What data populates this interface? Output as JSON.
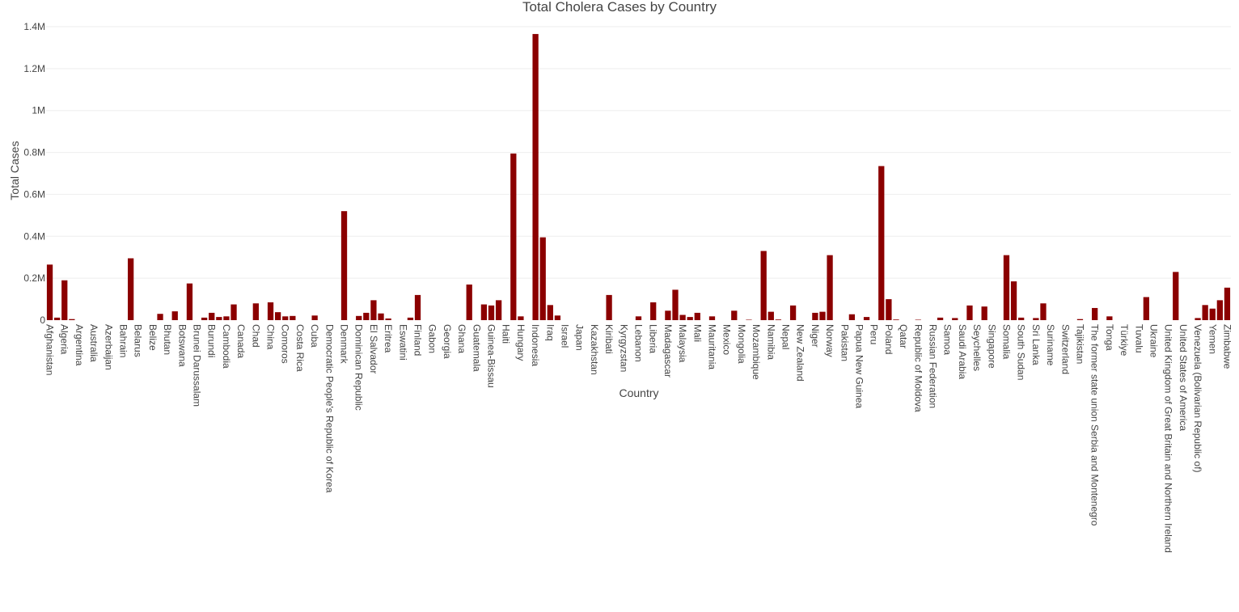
{
  "chart_data": {
    "type": "bar",
    "title": "Total Cholera Cases by Country",
    "xlabel": "Country",
    "ylabel": "Total Cases",
    "ylim": [
      0,
      1400000
    ],
    "yticks": [
      0,
      200000,
      400000,
      600000,
      800000,
      1000000,
      1200000,
      1400000
    ],
    "ytick_labels": [
      "0",
      "0.2M",
      "0.4M",
      "0.6M",
      "0.8M",
      "1M",
      "1.2M",
      "1.4M"
    ],
    "grid": true,
    "bar_color": "#8b0000",
    "categories": [
      "Afghanistan",
      "Algeria",
      "Argentina",
      "Australia",
      "Azerbaijan",
      "Bahrain",
      "Belarus",
      "Belize",
      "Bhutan",
      "Botswana",
      "Brunei Darussalam",
      "Burundi",
      "Cambodia",
      "Canada",
      "Chad",
      "China",
      "Comoros",
      "Costa Rica",
      "Cuba",
      "Democratic People's Republic of Korea",
      "Denmark",
      "Dominican Republic",
      "El Salvador",
      "Eritrea",
      "Eswatini",
      "Finland",
      "Gabon",
      "Georgia",
      "Ghana",
      "Guatemala",
      "Guinea-Bissau",
      "Haiti",
      "Hungary",
      "Indonesia",
      "Iraq",
      "Israel",
      "Japan",
      "Kazakhstan",
      "Kiribati",
      "Kyrgyzstan",
      "Lebanon",
      "Liberia",
      "Madagascar",
      "Malaysia",
      "Mali",
      "Mauritania",
      "Mexico",
      "Mongolia",
      "Mozambique",
      "Namibia",
      "Nepal",
      "New Zealand",
      "Niger",
      "Norway",
      "Pakistan",
      "Papua New Guinea",
      "Peru",
      "Poland",
      "Qatar",
      "Republic of Moldova",
      "Russian Federation",
      "Samoa",
      "Saudi Arabia",
      "Seychelles",
      "Singapore",
      "Somalia",
      "South Sudan",
      "Sri Lanka",
      "Suriname",
      "Switzerland",
      "Tajikistan",
      "The former state union Serbia and Montenegro",
      "Tonga",
      "Türkiye",
      "Tuvalu",
      "Ukraine",
      "United Kingdom of Great Britain and Northern Ireland",
      "United States of America",
      "Venezuela (Bolivarian Republic of)",
      "Yemen",
      "Zimbabwe"
    ],
    "bars": [
      {
        "pos": 0,
        "value": 265000
      },
      {
        "pos": 1,
        "value": 12000
      },
      {
        "pos": 2,
        "value": 190000
      },
      {
        "pos": 3,
        "value": 5000
      },
      {
        "pos": 11,
        "value": 295000
      },
      {
        "pos": 15,
        "value": 30000
      },
      {
        "pos": 17,
        "value": 42000
      },
      {
        "pos": 19,
        "value": 175000
      },
      {
        "pos": 21,
        "value": 12000
      },
      {
        "pos": 22,
        "value": 35000
      },
      {
        "pos": 23,
        "value": 15000
      },
      {
        "pos": 24,
        "value": 18000
      },
      {
        "pos": 25,
        "value": 75000
      },
      {
        "pos": 28,
        "value": 80000
      },
      {
        "pos": 30,
        "value": 85000
      },
      {
        "pos": 31,
        "value": 38000
      },
      {
        "pos": 32,
        "value": 18000
      },
      {
        "pos": 33,
        "value": 20000
      },
      {
        "pos": 36,
        "value": 22000
      },
      {
        "pos": 40,
        "value": 520000
      },
      {
        "pos": 42,
        "value": 20000
      },
      {
        "pos": 43,
        "value": 35000
      },
      {
        "pos": 44,
        "value": 95000
      },
      {
        "pos": 45,
        "value": 32000
      },
      {
        "pos": 46,
        "value": 8000
      },
      {
        "pos": 49,
        "value": 12000
      },
      {
        "pos": 50,
        "value": 120000
      },
      {
        "pos": 57,
        "value": 170000
      },
      {
        "pos": 59,
        "value": 75000
      },
      {
        "pos": 60,
        "value": 70000
      },
      {
        "pos": 61,
        "value": 95000
      },
      {
        "pos": 63,
        "value": 795000
      },
      {
        "pos": 64,
        "value": 18000
      },
      {
        "pos": 66,
        "value": 1365000
      },
      {
        "pos": 67,
        "value": 395000
      },
      {
        "pos": 68,
        "value": 72000
      },
      {
        "pos": 69,
        "value": 22000
      },
      {
        "pos": 76,
        "value": 120000
      },
      {
        "pos": 80,
        "value": 18000
      },
      {
        "pos": 82,
        "value": 85000
      },
      {
        "pos": 84,
        "value": 45000
      },
      {
        "pos": 85,
        "value": 145000
      },
      {
        "pos": 86,
        "value": 25000
      },
      {
        "pos": 87,
        "value": 15000
      },
      {
        "pos": 88,
        "value": 35000
      },
      {
        "pos": 90,
        "value": 18000
      },
      {
        "pos": 93,
        "value": 45000
      },
      {
        "pos": 95,
        "value": 2000
      },
      {
        "pos": 97,
        "value": 330000
      },
      {
        "pos": 98,
        "value": 40000
      },
      {
        "pos": 99,
        "value": 3000
      },
      {
        "pos": 101,
        "value": 70000
      },
      {
        "pos": 104,
        "value": 35000
      },
      {
        "pos": 105,
        "value": 40000
      },
      {
        "pos": 106,
        "value": 310000
      },
      {
        "pos": 109,
        "value": 28000
      },
      {
        "pos": 111,
        "value": 15000
      },
      {
        "pos": 113,
        "value": 735000
      },
      {
        "pos": 114,
        "value": 100000
      },
      {
        "pos": 115,
        "value": 3000
      },
      {
        "pos": 118,
        "value": 2000
      },
      {
        "pos": 121,
        "value": 12000
      },
      {
        "pos": 123,
        "value": 10000
      },
      {
        "pos": 125,
        "value": 70000
      },
      {
        "pos": 127,
        "value": 65000
      },
      {
        "pos": 130,
        "value": 310000
      },
      {
        "pos": 131,
        "value": 185000
      },
      {
        "pos": 132,
        "value": 12000
      },
      {
        "pos": 134,
        "value": 10000
      },
      {
        "pos": 135,
        "value": 80000
      },
      {
        "pos": 140,
        "value": 5000
      },
      {
        "pos": 142,
        "value": 58000
      },
      {
        "pos": 144,
        "value": 18000
      },
      {
        "pos": 149,
        "value": 110000
      },
      {
        "pos": 153,
        "value": 230000
      },
      {
        "pos": 156,
        "value": 10000
      },
      {
        "pos": 157,
        "value": 72000
      },
      {
        "pos": 158,
        "value": 55000
      },
      {
        "pos": 159,
        "value": 95000
      },
      {
        "pos": 160,
        "value": 155000
      }
    ]
  }
}
